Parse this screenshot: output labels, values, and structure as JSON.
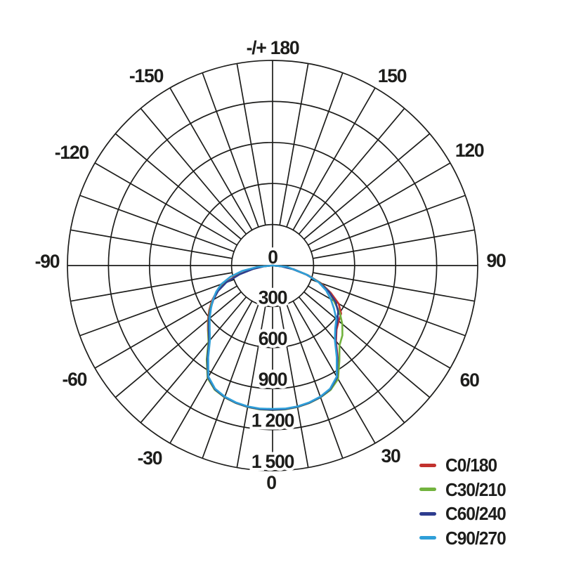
{
  "page": {
    "background_color": "#ffffff",
    "grid_color": "#1d1d1b",
    "text_color": "#1d1d1b"
  },
  "chart_data": {
    "type": "line",
    "subtype": "polar-photometric",
    "title": "",
    "top_axis_label": "-/+ 180",
    "bottom_axis_label": "0",
    "angle_labels": [
      {
        "angle": -150,
        "label": "-150"
      },
      {
        "angle": -120,
        "label": "-120"
      },
      {
        "angle": -90,
        "label": "-90"
      },
      {
        "angle": -60,
        "label": "-60"
      },
      {
        "angle": -30,
        "label": "-30"
      },
      {
        "angle": 30,
        "label": "30"
      },
      {
        "angle": 60,
        "label": "60"
      },
      {
        "angle": 90,
        "label": "90"
      },
      {
        "angle": 120,
        "label": "120"
      },
      {
        "angle": 150,
        "label": "150"
      }
    ],
    "radial_ticks": [
      {
        "value": 0,
        "label": "0"
      },
      {
        "value": 300,
        "label": "300"
      },
      {
        "value": 600,
        "label": "600"
      },
      {
        "value": 900,
        "label": "900"
      },
      {
        "value": 1200,
        "label": "1 200"
      },
      {
        "value": 1500,
        "label": "1 500"
      }
    ],
    "radial_max": 1500,
    "ring_step": 300,
    "spoke_step_deg": 10,
    "grid_on": true,
    "legend_position": "bottom-right",
    "angles_deg": [
      -90,
      -85,
      -80,
      -75,
      -70,
      -65,
      -60,
      -55,
      -50,
      -45,
      -40,
      -35,
      -30,
      -25,
      -20,
      -15,
      -10,
      -5,
      0,
      5,
      10,
      15,
      20,
      25,
      30,
      35,
      40,
      45,
      50,
      55,
      60,
      65,
      70,
      75,
      80,
      85,
      90
    ],
    "series": [
      {
        "name": "C0/180",
        "color": "#c2322e",
        "values": [
          0,
          70,
          160,
          265,
          375,
          450,
          512,
          565,
          617,
          668,
          727,
          835,
          948,
          1000,
          1025,
          1040,
          1050,
          1055,
          1055,
          1055,
          1050,
          1040,
          1025,
          1000,
          948,
          832,
          722,
          662,
          632,
          612,
          558,
          468,
          378,
          265,
          158,
          70,
          0
        ]
      },
      {
        "name": "C30/210",
        "color": "#72b33e",
        "values": [
          0,
          65,
          150,
          255,
          365,
          445,
          505,
          560,
          612,
          665,
          730,
          840,
          950,
          1002,
          1026,
          1041,
          1051,
          1056,
          1056,
          1056,
          1051,
          1041,
          1026,
          1004,
          958,
          852,
          762,
          722,
          666,
          600,
          518,
          458,
          370,
          258,
          150,
          65,
          0
        ]
      },
      {
        "name": "C60/240",
        "color": "#2e3d8f",
        "values": [
          0,
          60,
          145,
          250,
          360,
          440,
          500,
          555,
          608,
          660,
          722,
          830,
          944,
          998,
          1024,
          1039,
          1049,
          1054,
          1054,
          1054,
          1049,
          1039,
          1024,
          998,
          944,
          826,
          716,
          655,
          620,
          585,
          532,
          455,
          365,
          255,
          148,
          62,
          0
        ]
      },
      {
        "name": "C90/270",
        "color": "#2f9fd8",
        "values": [
          0,
          110,
          225,
          320,
          400,
          455,
          505,
          550,
          600,
          650,
          712,
          820,
          938,
          994,
          1020,
          1036,
          1046,
          1050,
          1048,
          1050,
          1046,
          1036,
          1020,
          994,
          938,
          818,
          708,
          648,
          608,
          548,
          492,
          432,
          358,
          262,
          152,
          105,
          0
        ]
      }
    ]
  }
}
